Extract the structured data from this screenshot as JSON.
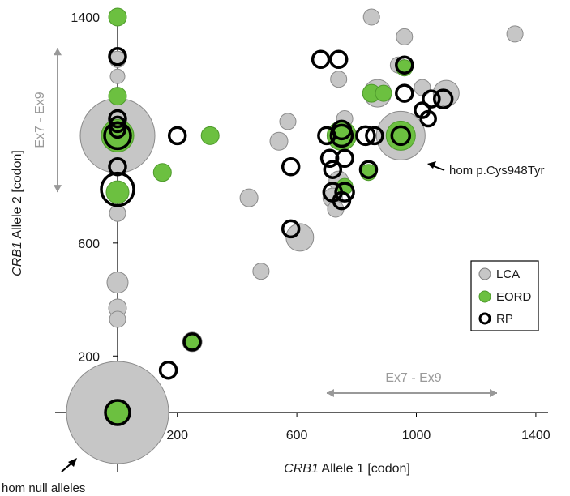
{
  "chart_data": {
    "type": "scatter",
    "title": "",
    "xlabel_italic": "CRB1",
    "xlabel_rest": " Allele 1 [codon]",
    "ylabel_italic": "CRB1",
    "ylabel_rest": " Allele 2 [codon]",
    "xlim": [
      -220,
      1470
    ],
    "ylim": [
      -30,
      1445
    ],
    "x_ticks": [
      200,
      600,
      1000,
      1400
    ],
    "y_ticks": [
      200,
      600,
      1400
    ],
    "x_tick_labels": [
      "200",
      "600",
      "1000",
      "1400"
    ],
    "y_tick_labels": [
      "200",
      "600",
      "1400"
    ],
    "colors": {
      "LCA": "#c6c6c6",
      "EORD": "#6cc040",
      "RP": "#ffffff",
      "stroke": "#000000",
      "range": "#999999"
    },
    "legend": {
      "placement": "right",
      "entries": [
        "LCA",
        "EORD",
        "RP"
      ]
    },
    "range_x": {
      "label": "Ex7 - Ex9",
      "from": 700,
      "to": 1270
    },
    "range_y": {
      "label": "Ex7 - Ex9",
      "from": 780,
      "to": 1290
    },
    "annotations": [
      {
        "text": "hom p.Cys948Tyr",
        "x": 948,
        "y": 980
      },
      {
        "text": "hom null alleles",
        "x": 0,
        "y": 0
      }
    ],
    "series": [
      {
        "name": "LCA",
        "type": "LCA",
        "points": [
          {
            "x": 0,
            "y": 0,
            "r": 63
          },
          {
            "x": 0,
            "y": 980,
            "r": 46
          },
          {
            "x": 948,
            "y": 980,
            "r": 30
          },
          {
            "x": 0,
            "y": 460,
            "r": 13
          },
          {
            "x": 0,
            "y": 370,
            "r": 11
          },
          {
            "x": 0,
            "y": 330,
            "r": 10
          },
          {
            "x": 0,
            "y": 705,
            "r": 10
          },
          {
            "x": 0,
            "y": 1250,
            "r": 10
          },
          {
            "x": 0,
            "y": 1190,
            "r": 9
          },
          {
            "x": 850,
            "y": 1400,
            "r": 10
          },
          {
            "x": 960,
            "y": 1330,
            "r": 10
          },
          {
            "x": 1330,
            "y": 1340,
            "r": 10
          },
          {
            "x": 940,
            "y": 1230,
            "r": 10
          },
          {
            "x": 740,
            "y": 1180,
            "r": 10
          },
          {
            "x": 870,
            "y": 1130,
            "r": 17
          },
          {
            "x": 1020,
            "y": 1150,
            "r": 10
          },
          {
            "x": 1100,
            "y": 1130,
            "r": 16
          },
          {
            "x": 570,
            "y": 1030,
            "r": 10
          },
          {
            "x": 540,
            "y": 960,
            "r": 11
          },
          {
            "x": 760,
            "y": 1040,
            "r": 10
          },
          {
            "x": 740,
            "y": 820,
            "r": 12
          },
          {
            "x": 440,
            "y": 760,
            "r": 11
          },
          {
            "x": 720,
            "y": 760,
            "r": 12
          },
          {
            "x": 730,
            "y": 720,
            "r": 10
          },
          {
            "x": 610,
            "y": 620,
            "r": 17
          },
          {
            "x": 480,
            "y": 500,
            "r": 10
          },
          {
            "x": 250,
            "y": 250,
            "r": 12
          }
        ]
      },
      {
        "name": "EORD",
        "type": "EORD",
        "points": [
          {
            "x": 0,
            "y": 0,
            "r": 15
          },
          {
            "x": 0,
            "y": 980,
            "r": 20
          },
          {
            "x": 0,
            "y": 1400,
            "r": 11
          },
          {
            "x": 0,
            "y": 1120,
            "r": 11
          },
          {
            "x": 0,
            "y": 780,
            "r": 14
          },
          {
            "x": 150,
            "y": 850,
            "r": 11
          },
          {
            "x": 310,
            "y": 980,
            "r": 11
          },
          {
            "x": 948,
            "y": 980,
            "r": 18
          },
          {
            "x": 750,
            "y": 980,
            "r": 18
          },
          {
            "x": 850,
            "y": 1130,
            "r": 11
          },
          {
            "x": 890,
            "y": 1130,
            "r": 10
          },
          {
            "x": 960,
            "y": 1220,
            "r": 10
          },
          {
            "x": 840,
            "y": 850,
            "r": 10
          },
          {
            "x": 760,
            "y": 800,
            "r": 10
          },
          {
            "x": 250,
            "y": 250,
            "r": 9
          }
        ]
      },
      {
        "name": "RP",
        "type": "RP",
        "points": [
          {
            "x": 0,
            "y": 0,
            "r": 15
          },
          {
            "x": 0,
            "y": 980,
            "r": 16
          },
          {
            "x": 0,
            "y": 1260,
            "r": 10
          },
          {
            "x": 0,
            "y": 1040,
            "r": 10
          },
          {
            "x": 0,
            "y": 1020,
            "r": 9
          },
          {
            "x": 0,
            "y": 1000,
            "r": 9
          },
          {
            "x": 0,
            "y": 870,
            "r": 10
          },
          {
            "x": 0,
            "y": 790,
            "r": 20
          },
          {
            "x": 200,
            "y": 980,
            "r": 10
          },
          {
            "x": 680,
            "y": 1250,
            "r": 10
          },
          {
            "x": 740,
            "y": 1250,
            "r": 10
          },
          {
            "x": 960,
            "y": 1230,
            "r": 10
          },
          {
            "x": 960,
            "y": 1130,
            "r": 10
          },
          {
            "x": 1050,
            "y": 1110,
            "r": 10
          },
          {
            "x": 1090,
            "y": 1110,
            "r": 11
          },
          {
            "x": 1020,
            "y": 1070,
            "r": 9
          },
          {
            "x": 1040,
            "y": 1040,
            "r": 9
          },
          {
            "x": 948,
            "y": 980,
            "r": 11
          },
          {
            "x": 700,
            "y": 980,
            "r": 10
          },
          {
            "x": 750,
            "y": 980,
            "r": 13
          },
          {
            "x": 750,
            "y": 1000,
            "r": 11
          },
          {
            "x": 830,
            "y": 980,
            "r": 11
          },
          {
            "x": 860,
            "y": 980,
            "r": 10
          },
          {
            "x": 710,
            "y": 900,
            "r": 10
          },
          {
            "x": 760,
            "y": 900,
            "r": 10
          },
          {
            "x": 840,
            "y": 860,
            "r": 10
          },
          {
            "x": 580,
            "y": 870,
            "r": 10
          },
          {
            "x": 720,
            "y": 860,
            "r": 10
          },
          {
            "x": 720,
            "y": 780,
            "r": 11
          },
          {
            "x": 760,
            "y": 780,
            "r": 11
          },
          {
            "x": 750,
            "y": 750,
            "r": 10
          },
          {
            "x": 580,
            "y": 650,
            "r": 10
          },
          {
            "x": 250,
            "y": 250,
            "r": 10
          },
          {
            "x": 170,
            "y": 150,
            "r": 10
          }
        ]
      }
    ]
  }
}
